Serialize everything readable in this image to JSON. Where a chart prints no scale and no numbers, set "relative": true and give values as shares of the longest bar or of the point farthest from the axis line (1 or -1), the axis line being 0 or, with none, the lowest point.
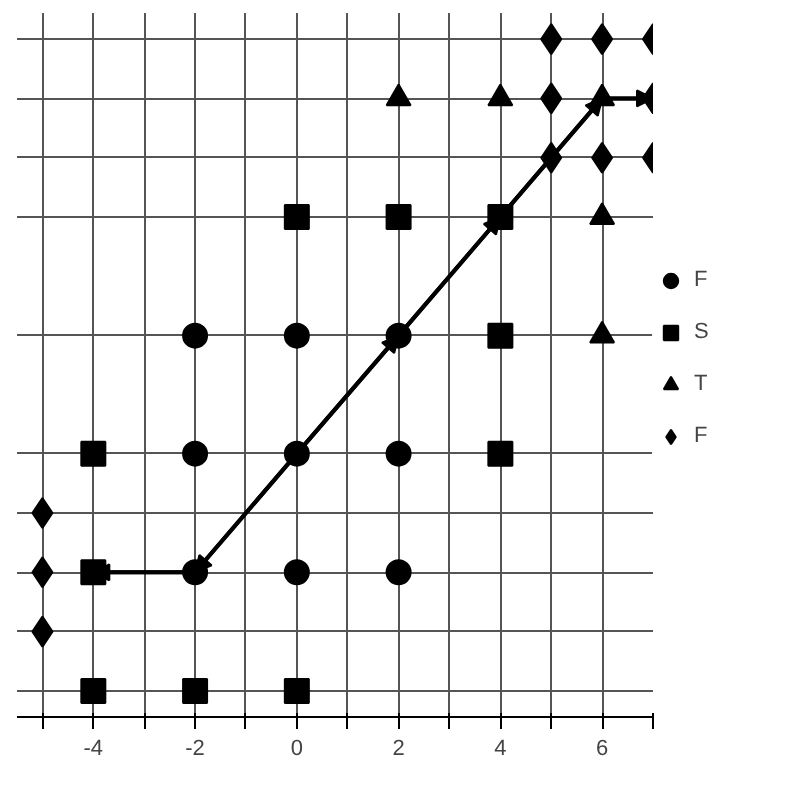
{
  "chart_data": {
    "type": "scatter",
    "relative": true,
    "xlim": [
      -5.5,
      7
    ],
    "xticks": [
      {
        "value": -5,
        "label": null
      },
      -4,
      {
        "value": -3,
        "label": null
      },
      -2,
      {
        "value": -1,
        "label": null
      },
      0,
      {
        "value": 1,
        "label": null
      },
      2,
      {
        "value": 3,
        "label": null
      },
      4,
      {
        "value": 5,
        "label": null
      },
      6,
      {
        "value": 7,
        "label": null
      }
    ],
    "grid": true,
    "legend": "right",
    "series": [
      {
        "name": "F",
        "color": "#000000",
        "marker": "circle",
        "x": [
          -2,
          0,
          2,
          -2,
          0,
          2,
          -2,
          0,
          2
        ],
        "values": [
          0.545,
          0.545,
          0.545,
          0.364,
          0.364,
          0.364,
          0.182,
          0.182,
          0.182
        ]
      },
      {
        "name": "S",
        "color": "#000000",
        "marker": "square",
        "x": [
          0,
          2,
          4,
          4,
          -4,
          4,
          -4,
          -4,
          -2,
          0
        ],
        "values": [
          0.727,
          0.727,
          0.727,
          0.545,
          0.364,
          0.364,
          0.182,
          0,
          0,
          0
        ]
      },
      {
        "name": "T",
        "color": "#000000",
        "marker": "triangle",
        "x": [
          2,
          4,
          6,
          6,
          6
        ],
        "values": [
          0.909,
          0.909,
          0.909,
          0.727,
          0.545
        ]
      },
      {
        "name": "F",
        "color": "#000000",
        "marker": "diamond",
        "x": [
          5,
          6,
          7,
          5,
          7,
          5,
          6,
          7,
          -5,
          -5,
          -5
        ],
        "values": [
          1,
          1,
          1,
          0.909,
          0.909,
          0.818,
          0.818,
          0.818,
          0.273,
          0.182,
          0.091
        ]
      },
      {
        "type": "line",
        "color": "#000000",
        "marker": "none",
        "x": [
          -4,
          -2,
          0,
          2,
          4,
          6,
          7
        ],
        "values": [
          0.182,
          0.182,
          0.364,
          0.545,
          0.727,
          0.909,
          0.909
        ]
      }
    ]
  }
}
